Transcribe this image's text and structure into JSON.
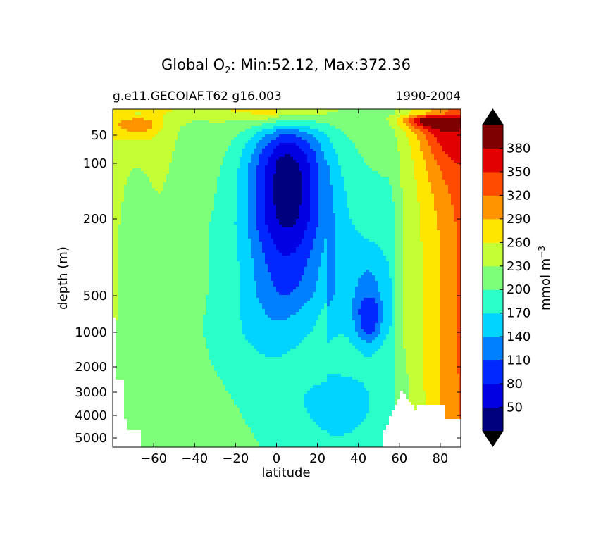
{
  "chart_data": {
    "type": "filled-contour",
    "title": {
      "prefix": "Global O",
      "subscript": "2",
      "suffix": ": Min:52.12, Max:372.36"
    },
    "subtitle_left": "g.e11.GECOIAF.T62 g16.003",
    "subtitle_right": "1990-2004",
    "xlabel": "latitude",
    "ylabel": "depth (m)",
    "xlim": [
      -80,
      90
    ],
    "x_ticks": [
      -60,
      -40,
      -20,
      0,
      20,
      40,
      60,
      80
    ],
    "x_tick_labels": [
      "−60",
      "−40",
      "−20",
      "0",
      "20",
      "40",
      "60",
      "80"
    ],
    "y_ticks": [
      50,
      100,
      200,
      500,
      1000,
      2000,
      3000,
      4000,
      5000
    ],
    "y_tick_labels": [
      "50",
      "100",
      "200",
      "500",
      "1000",
      "2000",
      "3000",
      "4000",
      "5000"
    ],
    "y_inverted": true,
    "colorbar": {
      "label": {
        "text": "mmol m",
        "superscript": "−3"
      },
      "levels": [
        20,
        50,
        80,
        110,
        140,
        170,
        200,
        230,
        260,
        290,
        320,
        350,
        380,
        410
      ],
      "tick_values": [
        50,
        80,
        110,
        140,
        170,
        200,
        230,
        260,
        290,
        320,
        350,
        380
      ],
      "tick_labels": [
        "50",
        "80",
        "110",
        "140",
        "170",
        "200",
        "230",
        "260",
        "290",
        "320",
        "350",
        "380"
      ],
      "colors": [
        "#00007f",
        "#0000e3",
        "#0028ff",
        "#0080ff",
        "#00d4ff",
        "#2bffc9",
        "#7dff7a",
        "#c3ff34",
        "#ffe600",
        "#ff9400",
        "#ff4a00",
        "#e30000",
        "#7f0000"
      ],
      "extend_colors": {
        "under": "#000000",
        "over": "#000000"
      }
    },
    "min": 52.12,
    "max": 372.36
  }
}
